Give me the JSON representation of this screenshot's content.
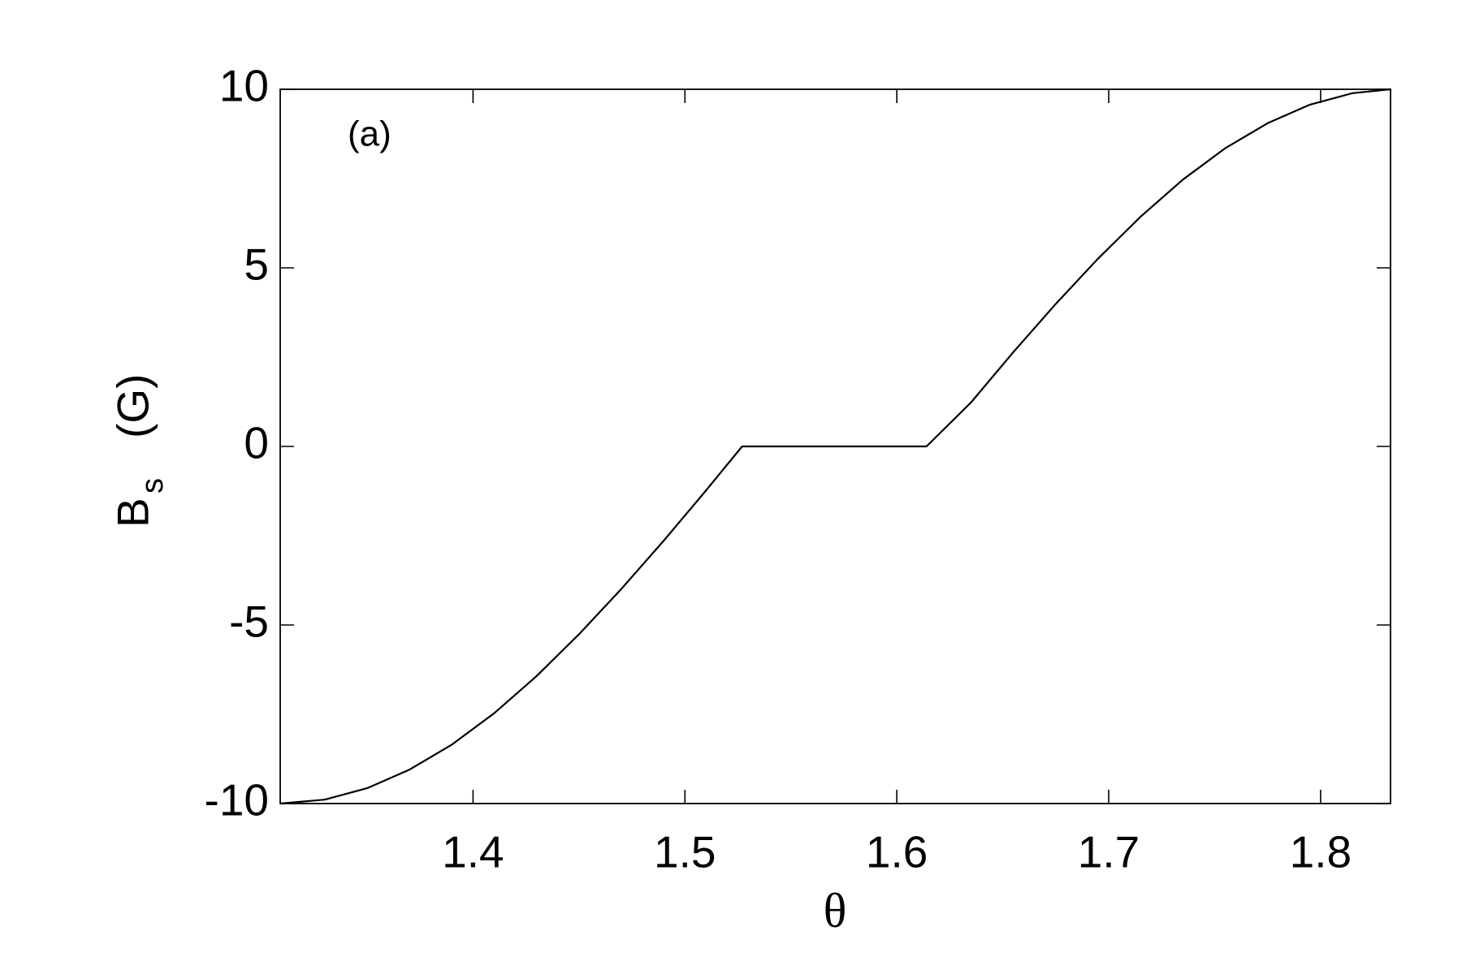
{
  "chart_data": {
    "type": "line",
    "annotation": "(a)",
    "xlabel": "θ",
    "ylabel": {
      "main": "B",
      "sub": "s",
      "unit": "(G)"
    },
    "x": [
      1.309,
      1.33,
      1.35,
      1.37,
      1.39,
      1.41,
      1.43,
      1.45,
      1.47,
      1.49,
      1.51,
      1.527,
      1.614,
      1.635,
      1.655,
      1.675,
      1.695,
      1.715,
      1.735,
      1.755,
      1.775,
      1.795,
      1.815,
      1.833
    ],
    "series": [
      {
        "color": "#000000",
        "values": [
          -10,
          -9.89,
          -9.57,
          -9.05,
          -8.35,
          -7.47,
          -6.43,
          -5.26,
          -3.99,
          -2.64,
          -1.23,
          0,
          0,
          1.23,
          2.64,
          3.99,
          5.26,
          6.43,
          7.47,
          8.35,
          9.05,
          9.57,
          9.89,
          10
        ]
      }
    ],
    "xlim": [
      1.309,
      1.833
    ],
    "ylim": [
      -10,
      10
    ],
    "xticks": [
      1.4,
      1.5,
      1.6,
      1.7,
      1.8
    ],
    "yticks": [
      -10,
      -5,
      0,
      5,
      10
    ]
  }
}
